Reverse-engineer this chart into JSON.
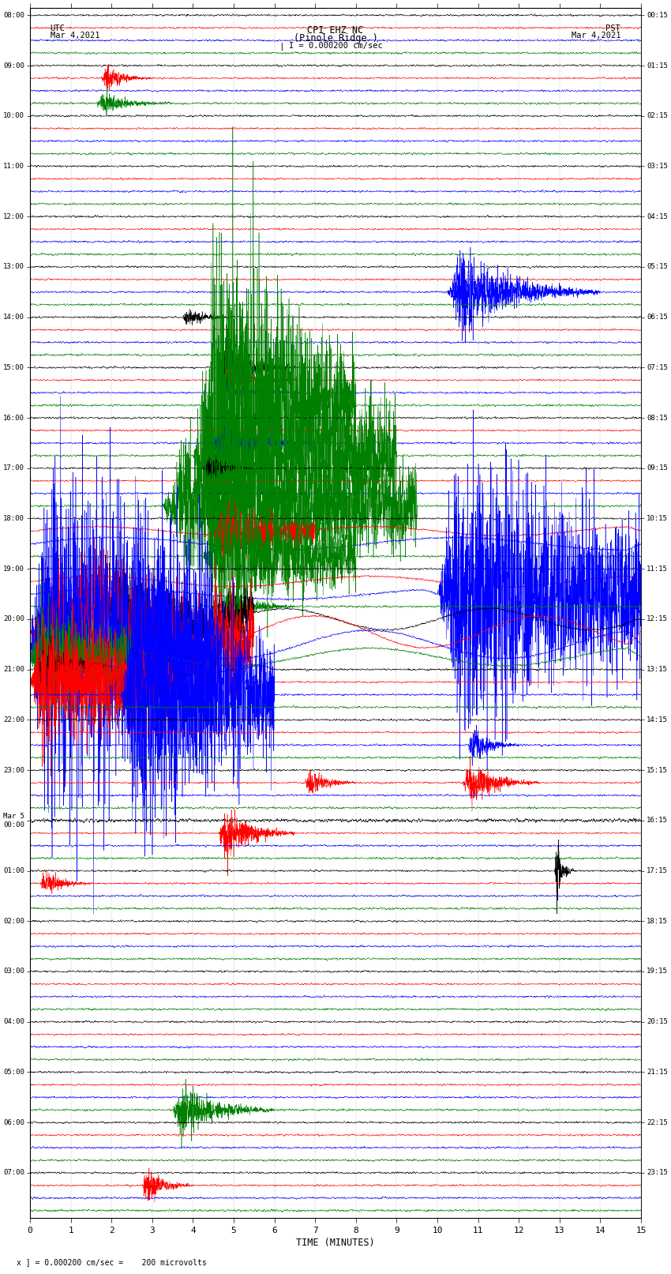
{
  "title_line1": "CPI EHZ NC",
  "title_line2": "(Pinole Ridge )",
  "scale_label": "I = 0.000200 cm/sec",
  "xlabel": "TIME (MINUTES)",
  "footer": "x ] = 0.000200 cm/sec =    200 microvolts",
  "xlim": [
    0,
    15
  ],
  "xticks": [
    0,
    1,
    2,
    3,
    4,
    5,
    6,
    7,
    8,
    9,
    10,
    11,
    12,
    13,
    14,
    15
  ],
  "bg_color": "#ffffff",
  "line_colors": [
    "black",
    "red",
    "blue",
    "green"
  ],
  "left_times": [
    "08:00",
    "09:00",
    "10:00",
    "11:00",
    "12:00",
    "13:00",
    "14:00",
    "15:00",
    "16:00",
    "17:00",
    "18:00",
    "19:00",
    "20:00",
    "21:00",
    "22:00",
    "23:00",
    "Mar 5\n00:00",
    "01:00",
    "02:00",
    "03:00",
    "04:00",
    "05:00",
    "06:00",
    "07:00"
  ],
  "right_times": [
    "00:15",
    "01:15",
    "02:15",
    "03:15",
    "04:15",
    "05:15",
    "06:15",
    "07:15",
    "08:15",
    "09:15",
    "10:15",
    "11:15",
    "12:15",
    "13:15",
    "14:15",
    "15:15",
    "16:15",
    "17:15",
    "18:15",
    "19:15",
    "20:15",
    "21:15",
    "22:15",
    "23:15"
  ],
  "n_hours": 24,
  "n_rows": 96,
  "seed": 42
}
